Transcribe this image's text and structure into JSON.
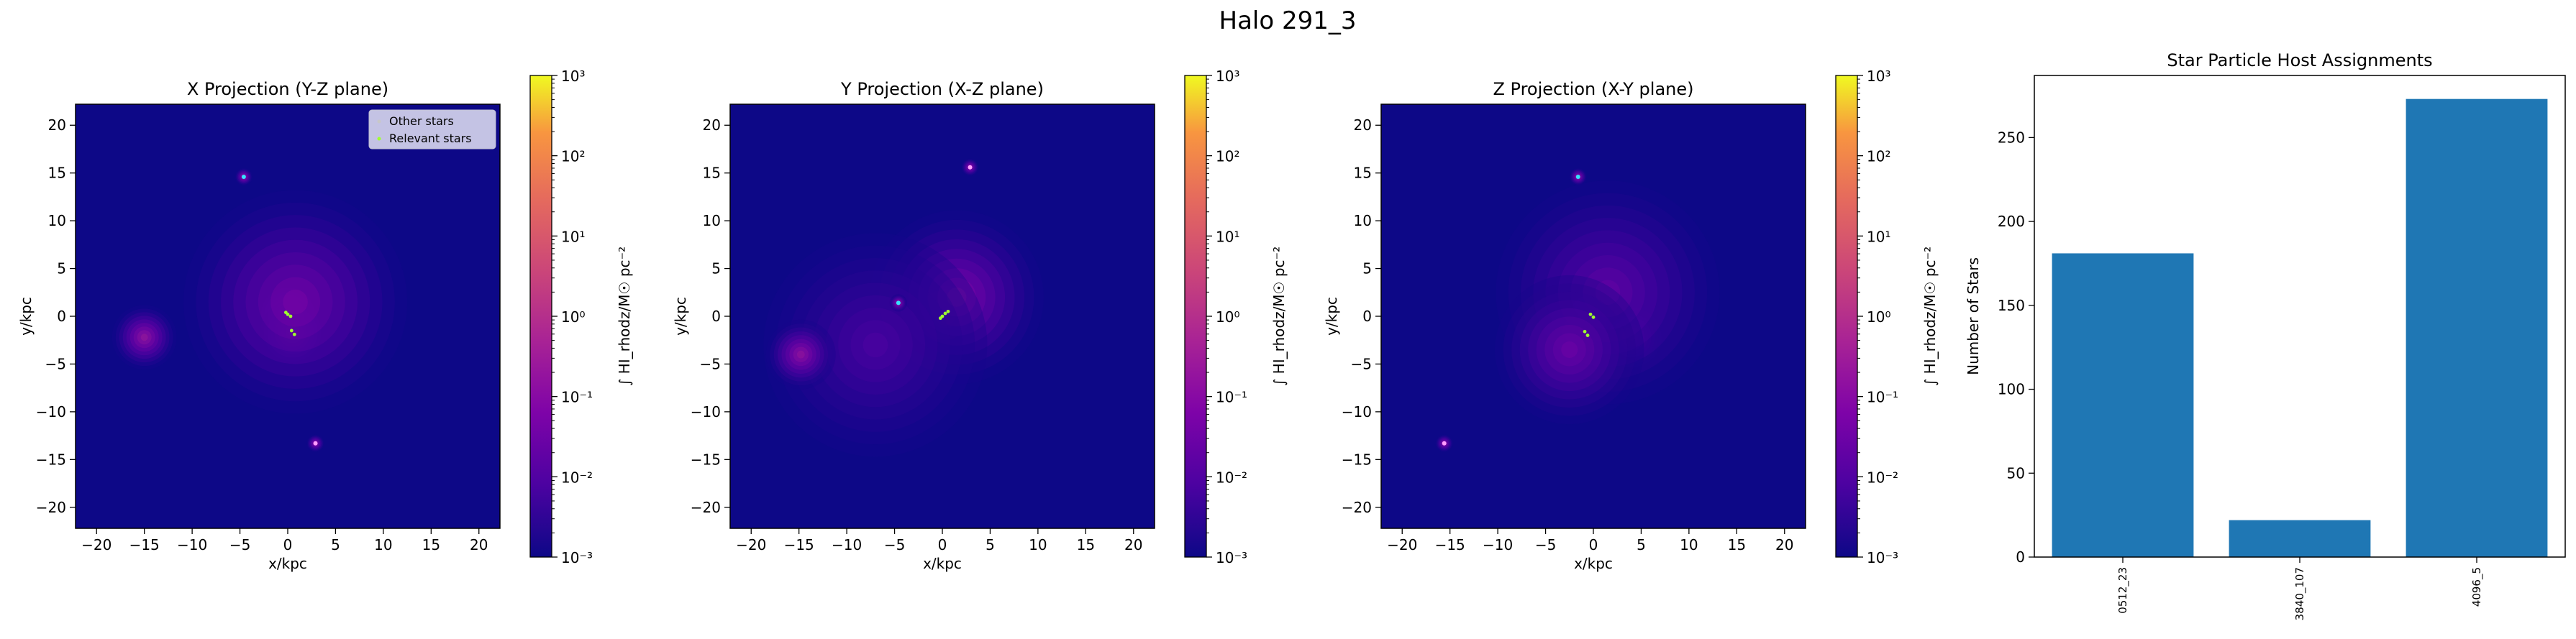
{
  "figure_title": "Halo 291_3",
  "colors": {
    "background_cmap_low": "#0d0887",
    "bar": "#1f77b4",
    "relevant_star": "#a0ff30",
    "other_star": "#c8c8c8"
  },
  "chart_data": [
    {
      "type": "heatmap",
      "title": "X Projection (Y-Z plane)",
      "xlabel": "x/kpc",
      "ylabel": "y/kpc",
      "xlim": [
        -22.2,
        22.2
      ],
      "ylim": [
        -22.2,
        22.2
      ],
      "xticks": [
        -20,
        -15,
        -10,
        -5,
        0,
        5,
        10,
        15,
        20
      ],
      "yticks": [
        -20,
        -15,
        -10,
        -5,
        0,
        5,
        10,
        15,
        20
      ],
      "legend": {
        "placement": "top-right",
        "entries": [
          "Other stars",
          "Relevant stars"
        ]
      },
      "colorbar": {
        "label": "∫ HI_rhodz/M☉ pc⁻²",
        "scale": "log",
        "range": [
          0.001,
          1000
        ],
        "ticks": [
          "10⁻³",
          "10⁻²",
          "10⁻¹",
          "10⁰",
          "10¹",
          "10²",
          "10³"
        ]
      },
      "blobs": [
        {
          "x": 0,
          "y": 0.2,
          "peak": 5,
          "sigma": 1.2
        },
        {
          "x": 0.5,
          "y": -1.7,
          "peak": 8,
          "sigma": 1.3
        },
        {
          "x": 0.8,
          "y": 1.5,
          "peak": 0.08,
          "sigma": 4.5
        },
        {
          "x": -15,
          "y": -2.2,
          "peak": 0.5,
          "sigma": 1.3
        },
        {
          "x": -4.6,
          "y": 14.6,
          "peak": 1,
          "sigma": 0.35
        },
        {
          "x": 2.9,
          "y": -13.3,
          "peak": 0.6,
          "sigma": 0.35
        }
      ],
      "points": [
        {
          "x": -4.6,
          "y": 14.6,
          "kind": "cyan"
        },
        {
          "x": 2.9,
          "y": -13.3,
          "kind": "pink"
        },
        {
          "x": 0.0,
          "y": 0.2,
          "kind": "relevant"
        },
        {
          "x": 0.3,
          "y": 0.0,
          "kind": "relevant"
        },
        {
          "x": 0.4,
          "y": -1.5,
          "kind": "relevant"
        },
        {
          "x": 0.7,
          "y": -1.9,
          "kind": "relevant"
        },
        {
          "x": -0.2,
          "y": 0.4,
          "kind": "relevant"
        }
      ]
    },
    {
      "type": "heatmap",
      "title": "Y Projection (X-Z plane)",
      "xlabel": "x/kpc",
      "ylabel": "y/kpc",
      "xlim": [
        -22.2,
        22.2
      ],
      "ylim": [
        -22.2,
        22.2
      ],
      "xticks": [
        -20,
        -15,
        -10,
        -5,
        0,
        5,
        10,
        15,
        20
      ],
      "yticks": [
        -20,
        -15,
        -10,
        -5,
        0,
        5,
        10,
        15,
        20
      ],
      "colorbar": {
        "label": "∫ HI_rhodz/M☉ pc⁻²",
        "scale": "log",
        "range": [
          0.001,
          1000
        ],
        "ticks": [
          "10⁻³",
          "10⁻²",
          "10⁻¹",
          "10⁰",
          "10¹",
          "10²",
          "10³"
        ]
      },
      "blobs": [
        {
          "x": 0.3,
          "y": 0.2,
          "peak": 10,
          "sigma": 1.3
        },
        {
          "x": 1.5,
          "y": 2.0,
          "peak": 0.15,
          "sigma": 3.5
        },
        {
          "x": -7,
          "y": -3,
          "peak": 0.01,
          "sigma": 4.5
        },
        {
          "x": -14.8,
          "y": -4.0,
          "peak": 0.4,
          "sigma": 1.4
        },
        {
          "x": 2.9,
          "y": 15.6,
          "peak": 0.7,
          "sigma": 0.35
        },
        {
          "x": -4.6,
          "y": 1.4,
          "peak": 1,
          "sigma": 0.35
        }
      ],
      "points": [
        {
          "x": -4.6,
          "y": 1.4,
          "kind": "cyan"
        },
        {
          "x": 2.9,
          "y": 15.6,
          "kind": "pink"
        },
        {
          "x": 0.0,
          "y": 0.0,
          "kind": "relevant"
        },
        {
          "x": 0.3,
          "y": 0.3,
          "kind": "relevant"
        },
        {
          "x": 0.6,
          "y": 0.5,
          "kind": "relevant"
        },
        {
          "x": -0.2,
          "y": -0.2,
          "kind": "relevant"
        }
      ]
    },
    {
      "type": "heatmap",
      "title": "Z Projection (X-Y plane)",
      "xlabel": "x/kpc",
      "ylabel": "y/kpc",
      "xlim": [
        -22.2,
        22.2
      ],
      "ylim": [
        -22.2,
        22.2
      ],
      "xticks": [
        -20,
        -15,
        -10,
        -5,
        0,
        5,
        10,
        15,
        20
      ],
      "yticks": [
        -20,
        -15,
        -10,
        -5,
        0,
        5,
        10,
        15,
        20
      ],
      "colorbar": {
        "label": "∫ HI_rhodz/M☉ pc⁻²",
        "scale": "log",
        "range": [
          0.001,
          1000
        ],
        "ticks": [
          "10⁻³",
          "10⁻²",
          "10⁻¹",
          "10⁰",
          "10¹",
          "10²",
          "10³"
        ]
      },
      "blobs": [
        {
          "x": -0.3,
          "y": 0.0,
          "peak": 5,
          "sigma": 1.1
        },
        {
          "x": -0.8,
          "y": -1.8,
          "peak": 6,
          "sigma": 1.2
        },
        {
          "x": 4.0,
          "y": -2.2,
          "peak": 0.3,
          "sigma": 1.2
        },
        {
          "x": 1.5,
          "y": 2.5,
          "peak": 0.03,
          "sigma": 4.5
        },
        {
          "x": -2.5,
          "y": -3.5,
          "peak": 0.05,
          "sigma": 3.0
        },
        {
          "x": -1.6,
          "y": 14.6,
          "peak": 1,
          "sigma": 0.35
        },
        {
          "x": -15.6,
          "y": -13.3,
          "peak": 0.6,
          "sigma": 0.35
        }
      ],
      "points": [
        {
          "x": -1.6,
          "y": 14.6,
          "kind": "cyan"
        },
        {
          "x": -15.6,
          "y": -13.3,
          "kind": "pink"
        },
        {
          "x": -0.3,
          "y": 0.2,
          "kind": "relevant"
        },
        {
          "x": 0.0,
          "y": -0.1,
          "kind": "relevant"
        },
        {
          "x": -0.9,
          "y": -1.6,
          "kind": "relevant"
        },
        {
          "x": -0.6,
          "y": -2.0,
          "kind": "relevant"
        }
      ]
    },
    {
      "type": "bar",
      "title": "Star Particle Host Assignments",
      "categories": [
        "0512_23",
        "3840_107",
        "4096_5"
      ],
      "values": [
        181,
        22,
        273
      ],
      "xlabel": "",
      "ylabel": "Number of Stars",
      "ylim": [
        0,
        287
      ],
      "yticks": [
        0,
        50,
        100,
        150,
        200,
        250
      ]
    }
  ]
}
